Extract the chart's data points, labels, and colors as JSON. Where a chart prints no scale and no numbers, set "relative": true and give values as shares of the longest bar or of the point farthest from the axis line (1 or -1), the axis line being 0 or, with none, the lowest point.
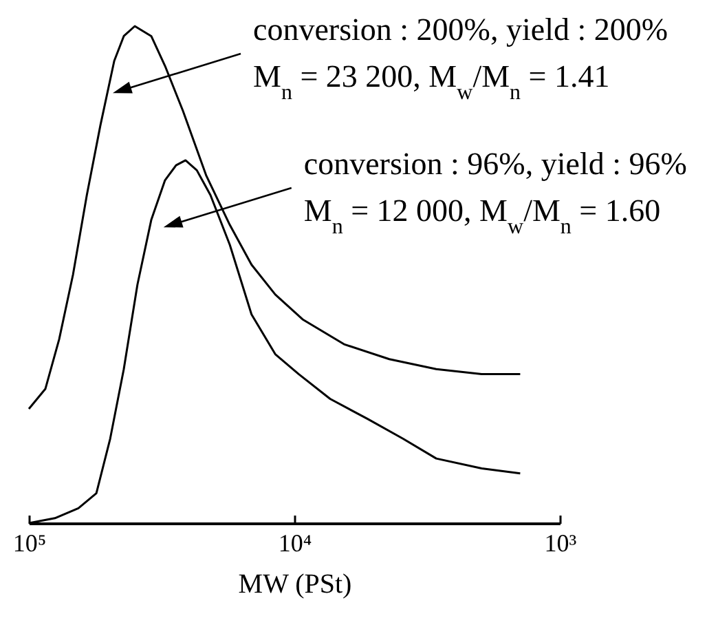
{
  "chart_data": {
    "type": "line",
    "relative": true,
    "log": "x",
    "xlabel": "MW (PSt)",
    "xlim": [
      100000,
      1000
    ],
    "xticks": [
      {
        "value": 100000,
        "label": "10⁵"
      },
      {
        "value": 10000,
        "label": "10⁴"
      },
      {
        "value": 1000,
        "label": "10³"
      }
    ],
    "series": [
      {
        "color": "#000000",
        "x": [
          100000,
          86700,
          76900,
          68200,
          60500,
          53800,
          47700,
          43900,
          39900,
          34600,
          30700,
          26300,
          21500,
          17500,
          14500,
          11800,
          9310,
          6500,
          4390,
          2920,
          1970,
          1410
        ],
        "values": [
          0.23,
          0.27,
          0.37,
          0.5,
          0.66,
          0.8,
          0.93,
          0.98,
          1.0,
          0.98,
          0.92,
          0.83,
          0.7,
          0.6,
          0.52,
          0.46,
          0.41,
          0.36,
          0.33,
          0.31,
          0.3,
          0.3
        ]
      },
      {
        "color": "#000000",
        "x": [
          100000,
          79800,
          65100,
          55700,
          49400,
          43900,
          39000,
          34600,
          30700,
          27900,
          25700,
          23300,
          20700,
          17500,
          14500,
          11800,
          9640,
          7330,
          5310,
          3900,
          2920,
          1970,
          1410
        ],
        "values": [
          0.0,
          0.01,
          0.03,
          0.06,
          0.17,
          0.31,
          0.48,
          0.61,
          0.69,
          0.72,
          0.73,
          0.71,
          0.66,
          0.56,
          0.42,
          0.34,
          0.3,
          0.25,
          0.21,
          0.17,
          0.13,
          0.11,
          0.1
        ]
      }
    ],
    "annotations": [
      "conversion : 200%, yield : 200%\nM$_{n}$ = 23 200,  M$_{w}$/M$_{n}$ = 1.41",
      "conversion : 96%, yield : 96%\nM$_{n}$ = 12 000, M$_{w}$/M$_{n}$ = 1.60"
    ]
  }
}
